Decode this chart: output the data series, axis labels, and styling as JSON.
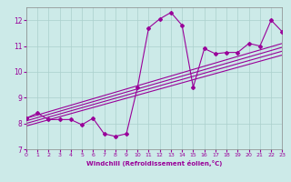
{
  "xlabel": "Windchill (Refroidissement éolien,°C)",
  "xlim": [
    0,
    23
  ],
  "ylim": [
    7,
    12.5
  ],
  "yticks": [
    7,
    8,
    9,
    10,
    11,
    12
  ],
  "xticks": [
    0,
    1,
    2,
    3,
    4,
    5,
    6,
    7,
    8,
    9,
    10,
    11,
    12,
    13,
    14,
    15,
    16,
    17,
    18,
    19,
    20,
    21,
    22,
    23
  ],
  "bg_color": "#cceae8",
  "line_color": "#990099",
  "grid_color": "#aacfcc",
  "line_width": 0.8,
  "marker": "D",
  "marker_size": 2.0,
  "series": [
    [
      0,
      8.2
    ],
    [
      1,
      8.4
    ],
    [
      2,
      8.15
    ],
    [
      3,
      8.15
    ],
    [
      4,
      8.15
    ],
    [
      5,
      7.95
    ],
    [
      6,
      8.2
    ],
    [
      7,
      7.6
    ],
    [
      8,
      7.5
    ],
    [
      9,
      7.6
    ],
    [
      10,
      9.4
    ],
    [
      11,
      11.7
    ],
    [
      12,
      12.05
    ],
    [
      13,
      12.3
    ],
    [
      14,
      11.8
    ],
    [
      15,
      9.4
    ],
    [
      16,
      10.9
    ],
    [
      17,
      10.7
    ],
    [
      18,
      10.75
    ],
    [
      19,
      10.75
    ],
    [
      20,
      11.1
    ],
    [
      21,
      11.0
    ],
    [
      22,
      12.0
    ],
    [
      23,
      11.55
    ]
  ],
  "straight_lines": [
    [
      [
        0,
        8.2
      ],
      [
        23,
        11.1
      ]
    ],
    [
      [
        0,
        8.1
      ],
      [
        23,
        10.95
      ]
    ],
    [
      [
        0,
        8.0
      ],
      [
        23,
        10.8
      ]
    ],
    [
      [
        0,
        7.9
      ],
      [
        23,
        10.65
      ]
    ]
  ]
}
